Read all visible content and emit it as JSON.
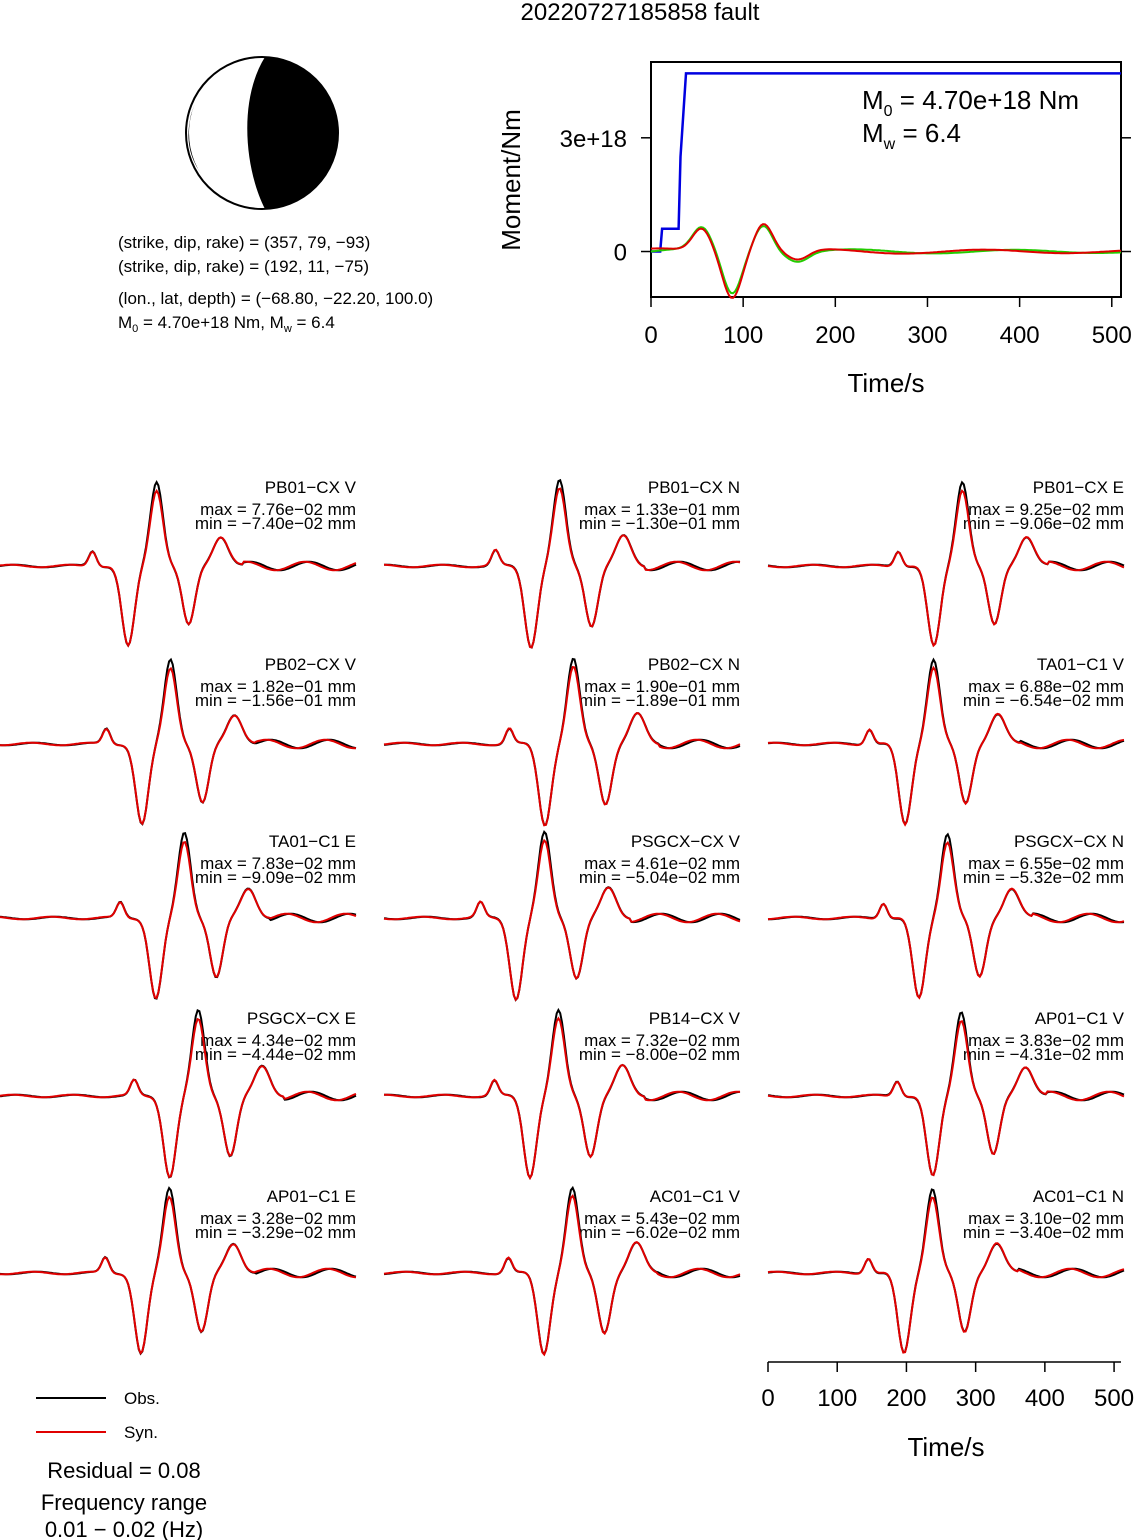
{
  "title": "20220727185858 fault",
  "colors": {
    "observed": "#000000",
    "synthetic": "#e00000",
    "stf": "#0000e0",
    "moment_green": "#22cc00"
  },
  "focal_mechanism": {
    "line1": "(strike, dip, rake) = (357, 79, −93)",
    "line2": "(strike, dip, rake) = (192, 11, −75)",
    "line3": "(lon., lat, depth) = (−68.80, −22.20, 100.0)",
    "line4_m0": "M",
    "line4_m0_sub": "0",
    "line4_rest": " = 4.70e+18 Nm, M",
    "line4_mw_sub": "w",
    "line4_end": " = 6.4"
  },
  "moment_plot": {
    "ylabel": "Moment/Nm",
    "xlabel": "Time/s",
    "yticks": [
      "0",
      "3e+18"
    ],
    "xticks": [
      "0",
      "100",
      "200",
      "300",
      "400",
      "500"
    ],
    "m0_label": "M",
    "m0_sub": "0",
    "m0_value": " = 4.70e+18 Nm",
    "mw_label": "M",
    "mw_sub": "w",
    "mw_value": " = 6.4"
  },
  "chart_data": [
    {
      "type": "line",
      "title": "",
      "xlabel": "Time/s",
      "ylabel": "Moment/Nm",
      "xlim": [
        0,
        510
      ],
      "ylim": [
        -1.2e+18,
        5e+18
      ],
      "series": [
        {
          "x": [
            0,
            10,
            12,
            30,
            32,
            38,
            40,
            510
          ],
          "values": [
            0,
            0,
            6e+17,
            6e+17,
            2.5e+18,
            4.7e+18,
            4.7e+18,
            4.7e+18
          ]
        }
      ]
    },
    {
      "type": "line",
      "title": "",
      "xlabel": "Time/s",
      "xlim": [
        0,
        510
      ],
      "stations": [
        {
          "label": "PB01−CX V",
          "max": "max = 7.76e−02 mm",
          "min": "min = −7.40e−02 mm"
        },
        {
          "label": "PB01−CX N",
          "max": "max = 1.33e−01 mm",
          "min": "min = −1.30e−01 mm"
        },
        {
          "label": "PB01−CX E",
          "max": "max = 9.25e−02 mm",
          "min": "min = −9.06e−02 mm"
        },
        {
          "label": "PB02−CX V",
          "max": "max = 1.82e−01 mm",
          "min": "min = −1.56e−01 mm"
        },
        {
          "label": "PB02−CX N",
          "max": "max = 1.90e−01 mm",
          "min": "min = −1.89e−01 mm"
        },
        {
          "label": "TA01−C1 V",
          "max": "max = 6.88e−02 mm",
          "min": "min = −6.54e−02 mm"
        },
        {
          "label": "TA01−C1 E",
          "max": "max = 7.83e−02 mm",
          "min": "min = −9.09e−02 mm"
        },
        {
          "label": "PSGCX−CX V",
          "max": "max = 4.61e−02 mm",
          "min": "min = −5.04e−02 mm"
        },
        {
          "label": "PSGCX−CX N",
          "max": "max = 6.55e−02 mm",
          "min": "min = −5.32e−02 mm"
        },
        {
          "label": "PSGCX−CX E",
          "max": "max = 4.34e−02 mm",
          "min": "min = −4.44e−02 mm"
        },
        {
          "label": "PB14−CX V",
          "max": "max = 7.32e−02 mm",
          "min": "min = −8.00e−02 mm"
        },
        {
          "label": "AP01−C1 V",
          "max": "max = 3.83e−02 mm",
          "min": "min = −4.31e−02 mm"
        },
        {
          "label": "AP01−C1 E",
          "max": "max = 3.28e−02 mm",
          "min": "min = −3.29e−02 mm"
        },
        {
          "label": "AC01−C1 V",
          "max": "max = 5.43e−02 mm",
          "min": "min = −6.02e−02 mm"
        },
        {
          "label": "AC01−C1 N",
          "max": "max = 3.10e−02 mm",
          "min": "min = −3.40e−02 mm"
        }
      ],
      "xticks": [
        "0",
        "100",
        "200",
        "300",
        "400",
        "500"
      ]
    }
  ],
  "legend": {
    "obs": "Obs.",
    "syn": "Syn."
  },
  "footer": {
    "residual": "Residual = 0.08",
    "freq_title": "Frequency range",
    "freq_value": "0.01 − 0.02 (Hz)"
  }
}
